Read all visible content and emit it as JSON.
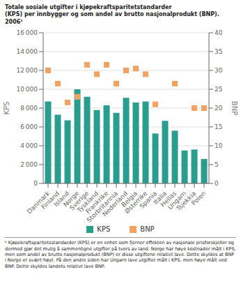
{
  "chart_data": {
    "type": "bar",
    "title": "Totale sosiale utgifter i kjøpekraftsparitetstandarder\n(KPS) per innbygger og som andel av brutto nasjonalprodukt (BNP). 2006¹",
    "annotations": [
      "¹ Kjøpekraftsparitetsstandarder (KPS) er en enhet som fjerner effekten av nasjonale prisforskjeller og dermed gjør det mulig å sammenligne utgifter på tvers av land. Norge har høye kostnader målt i KPS, men som andel av brutto nasjonalprodukt (BNP) er disse utgiftene relativt lave. Dette skyldes at BNP i Norge er svært høyt. På den andre siden har Ungarn lave utgifter målt i KPS, men høye målt ved BNP. Dette skyldes landets relativt lave BNP."
    ],
    "categories": [
      "Danmark",
      "Finland",
      "Island",
      "Norge",
      "Sverige",
      "Tyskland",
      "Frankrike",
      "Storbritannia",
      "Nederland",
      "Belgia",
      "Østerrike",
      "Spania",
      "Italia",
      "Hellas",
      "Ungarn",
      "Tsjekkia",
      "Polen"
    ],
    "series": [
      {
        "name": "KPS",
        "type": "bar",
        "color": "#2a9d8f",
        "values": [
          8700,
          7300,
          6700,
          10000,
          9200,
          7800,
          8300,
          7500,
          9100,
          8600,
          8700,
          5300,
          6650,
          5600,
          3500,
          3600,
          2600
        ]
      },
      {
        "name": "BNP",
        "type": "scatter",
        "marker": "square",
        "color": "#f4a261",
        "axis": "y2",
        "values": [
          30,
          26.5,
          21.5,
          23,
          31.5,
          29,
          31.5,
          26.5,
          30,
          30.5,
          29,
          21,
          null,
          26.5,
          null,
          20,
          20
        ]
      }
    ],
    "ylabel": "KPS",
    "y2label": "BNP",
    "ylim": [
      0,
      16000
    ],
    "yticks": [
      0,
      {
        "value": 2000,
        "label": "2 000"
      },
      {
        "value": 4000,
        "label": "4 000"
      },
      {
        "value": 6000,
        "label": "6 000"
      },
      {
        "value": 8000,
        "label": "8 000"
      },
      {
        "value": 10000,
        "label": "10 000"
      },
      {
        "value": 12000,
        "label": "12 000"
      },
      {
        "value": 14000,
        "label": "14 000"
      },
      {
        "value": 16000,
        "label": "16 000"
      }
    ],
    "y2lim": [
      0,
      40
    ],
    "y2ticks": [
      0,
      5,
      10,
      15,
      20,
      25,
      30,
      35,
      40
    ],
    "grid": true,
    "legend": "bottom"
  }
}
